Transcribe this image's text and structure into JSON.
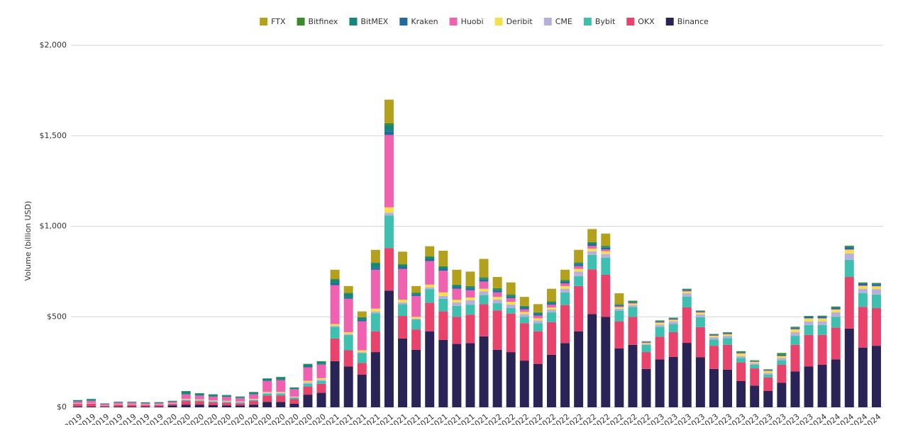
{
  "chart_data": {
    "type": "stacked_bar",
    "y_label": "Volume (billion USD)",
    "categories": [
      "2019",
      "2019",
      "2019",
      "2019",
      "2019",
      "2019",
      "2019",
      "2020",
      "2020",
      "2020",
      "2020",
      "2020",
      "2020",
      "2020",
      "2020",
      "2020",
      "2020",
      "2020",
      "2020",
      "2021",
      "2021",
      "2021",
      "2021",
      "2021",
      "2021",
      "2021",
      "2021",
      "2021",
      "2021",
      "2021",
      "2021",
      "2022",
      "2022",
      "2022",
      "2022",
      "2022",
      "2022",
      "2022",
      "2022",
      "2022",
      "2022",
      "2022",
      "2022",
      "2023",
      "2023",
      "2023",
      "2023",
      "2023",
      "2023",
      "2023",
      "2023",
      "2023",
      "2023",
      "2023",
      "2023",
      "2024",
      "2024",
      "2024",
      "2024",
      "2024"
    ],
    "ylim": [
      0,
      2000
    ],
    "yticks": [
      {
        "value": 0,
        "label": "$0"
      },
      {
        "value": 500,
        "label": "$500"
      },
      {
        "value": 1000,
        "label": "$1,000"
      },
      {
        "value": 1500,
        "label": "$1,500"
      },
      {
        "value": 2000,
        "label": "$2,000"
      }
    ],
    "grid": true,
    "legend": "top",
    "series": [
      {
        "name": "FTX",
        "color": "#b3a11e",
        "values": [
          0,
          0,
          0,
          0,
          0,
          0,
          0,
          0,
          0,
          0,
          0,
          0,
          0,
          0,
          0,
          0,
          0,
          0,
          0,
          50,
          37,
          32,
          70,
          130,
          68,
          36,
          55,
          85,
          82,
          80,
          102,
          62,
          66,
          50,
          45,
          70,
          56,
          69,
          72,
          68,
          60,
          2,
          0,
          0,
          0,
          0,
          0,
          0,
          0,
          0,
          0,
          0,
          0,
          0,
          0,
          0,
          0,
          0,
          0,
          0
        ]
      },
      {
        "name": "Bitfinex",
        "color": "#3b8a2c",
        "values": [
          1,
          1,
          1,
          1,
          1,
          1,
          1,
          1,
          3,
          2,
          2,
          2,
          2,
          2,
          2,
          3,
          2,
          3,
          3,
          5,
          5,
          3,
          5,
          10,
          5,
          3,
          5,
          5,
          5,
          5,
          5,
          5,
          5,
          4,
          4,
          4,
          5,
          5,
          5,
          5,
          3,
          3,
          2,
          3,
          2,
          3,
          2,
          2,
          3,
          5,
          3,
          4,
          10,
          4,
          3,
          3,
          4,
          5,
          4,
          4
        ]
      },
      {
        "name": "BitMEX",
        "color": "#16857a",
        "values": [
          6,
          8,
          3,
          4,
          4,
          4,
          4,
          4,
          14,
          10,
          10,
          8,
          6,
          10,
          10,
          12,
          7,
          12,
          12,
          20,
          20,
          12,
          25,
          35,
          12,
          8,
          12,
          10,
          8,
          8,
          8,
          8,
          8,
          6,
          6,
          6,
          6,
          6,
          6,
          5,
          3,
          3,
          2,
          2,
          2,
          3,
          2,
          2,
          2,
          2,
          2,
          1,
          2,
          3,
          3,
          3,
          3,
          3,
          3,
          3
        ]
      },
      {
        "name": "Kraken",
        "color": "#1f6a9e",
        "values": [
          1,
          1,
          1,
          1,
          1,
          1,
          1,
          1,
          2,
          2,
          2,
          2,
          2,
          2,
          3,
          3,
          2,
          4,
          4,
          10,
          8,
          8,
          10,
          20,
          10,
          8,
          10,
          10,
          10,
          10,
          10,
          10,
          8,
          8,
          8,
          8,
          8,
          10,
          10,
          10,
          6,
          6,
          3,
          5,
          5,
          6,
          5,
          4,
          5,
          4,
          3,
          3,
          4,
          6,
          7,
          8,
          8,
          12,
          10,
          10
        ]
      },
      {
        "name": "Huobi",
        "color": "#ef62b0",
        "values": [
          10,
          12,
          6,
          8,
          8,
          7,
          7,
          8,
          25,
          20,
          20,
          20,
          18,
          25,
          60,
          65,
          40,
          75,
          75,
          215,
          185,
          160,
          215,
          400,
          170,
          115,
          130,
          120,
          60,
          40,
          40,
          25,
          20,
          15,
          15,
          15,
          15,
          15,
          15,
          10,
          5,
          3,
          3,
          3,
          3,
          3,
          3,
          2,
          2,
          2,
          2,
          2,
          2,
          2,
          2,
          2,
          2,
          3,
          3,
          2
        ]
      },
      {
        "name": "Deribit",
        "color": "#f5df4d",
        "values": [
          1,
          1,
          0,
          1,
          1,
          1,
          1,
          1,
          3,
          3,
          3,
          3,
          2,
          3,
          5,
          5,
          3,
          8,
          8,
          10,
          10,
          10,
          15,
          30,
          15,
          10,
          15,
          20,
          15,
          15,
          15,
          15,
          15,
          12,
          12,
          12,
          15,
          15,
          15,
          15,
          8,
          8,
          5,
          10,
          8,
          10,
          10,
          8,
          8,
          14,
          7,
          10,
          10,
          15,
          15,
          15,
          15,
          20,
          15,
          15
        ]
      },
      {
        "name": "CME",
        "color": "#b8b0dc",
        "values": [
          1,
          1,
          1,
          1,
          1,
          1,
          1,
          1,
          3,
          3,
          3,
          3,
          3,
          3,
          5,
          5,
          3,
          8,
          8,
          5,
          5,
          5,
          10,
          15,
          10,
          5,
          10,
          15,
          20,
          25,
          20,
          20,
          20,
          15,
          15,
          15,
          20,
          25,
          20,
          20,
          10,
          10,
          5,
          12,
          15,
          18,
          15,
          12,
          12,
          10,
          8,
          10,
          12,
          20,
          20,
          20,
          25,
          35,
          25,
          30
        ]
      },
      {
        "name": "Bybit",
        "color": "#3fbfb0",
        "values": [
          1,
          1,
          1,
          1,
          1,
          1,
          1,
          2,
          5,
          5,
          5,
          5,
          5,
          5,
          10,
          10,
          8,
          15,
          15,
          65,
          85,
          55,
          100,
          180,
          65,
          55,
          75,
          70,
          60,
          55,
          50,
          40,
          30,
          35,
          45,
          55,
          70,
          55,
          80,
          95,
          60,
          55,
          40,
          55,
          45,
          60,
          55,
          35,
          38,
          25,
          20,
          15,
          25,
          50,
          55,
          55,
          60,
          95,
          75,
          75
        ]
      },
      {
        "name": "OKX",
        "color": "#e8436a",
        "values": [
          14,
          16,
          6,
          10,
          10,
          8,
          8,
          8,
          20,
          18,
          15,
          15,
          12,
          20,
          35,
          35,
          25,
          45,
          50,
          125,
          90,
          65,
          115,
          235,
          125,
          112,
          158,
          158,
          150,
          157,
          178,
          217,
          213,
          207,
          180,
          180,
          210,
          250,
          247,
          232,
          150,
          155,
          93,
          125,
          137,
          196,
          167,
          128,
          137,
          103,
          95,
          75,
          100,
          147,
          175,
          165,
          175,
          285,
          225,
          208
        ]
      },
      {
        "name": "Binance",
        "color": "#2a2456",
        "values": [
          5,
          5,
          3,
          4,
          4,
          4,
          5,
          10,
          15,
          15,
          12,
          10,
          10,
          15,
          30,
          30,
          20,
          70,
          80,
          255,
          225,
          180,
          305,
          645,
          380,
          318,
          420,
          372,
          350,
          355,
          392,
          318,
          305,
          258,
          240,
          290,
          355,
          420,
          515,
          500,
          325,
          345,
          212,
          265,
          278,
          356,
          276,
          212,
          208,
          145,
          120,
          90,
          135,
          198,
          225,
          235,
          265,
          435,
          330,
          340
        ]
      }
    ]
  }
}
